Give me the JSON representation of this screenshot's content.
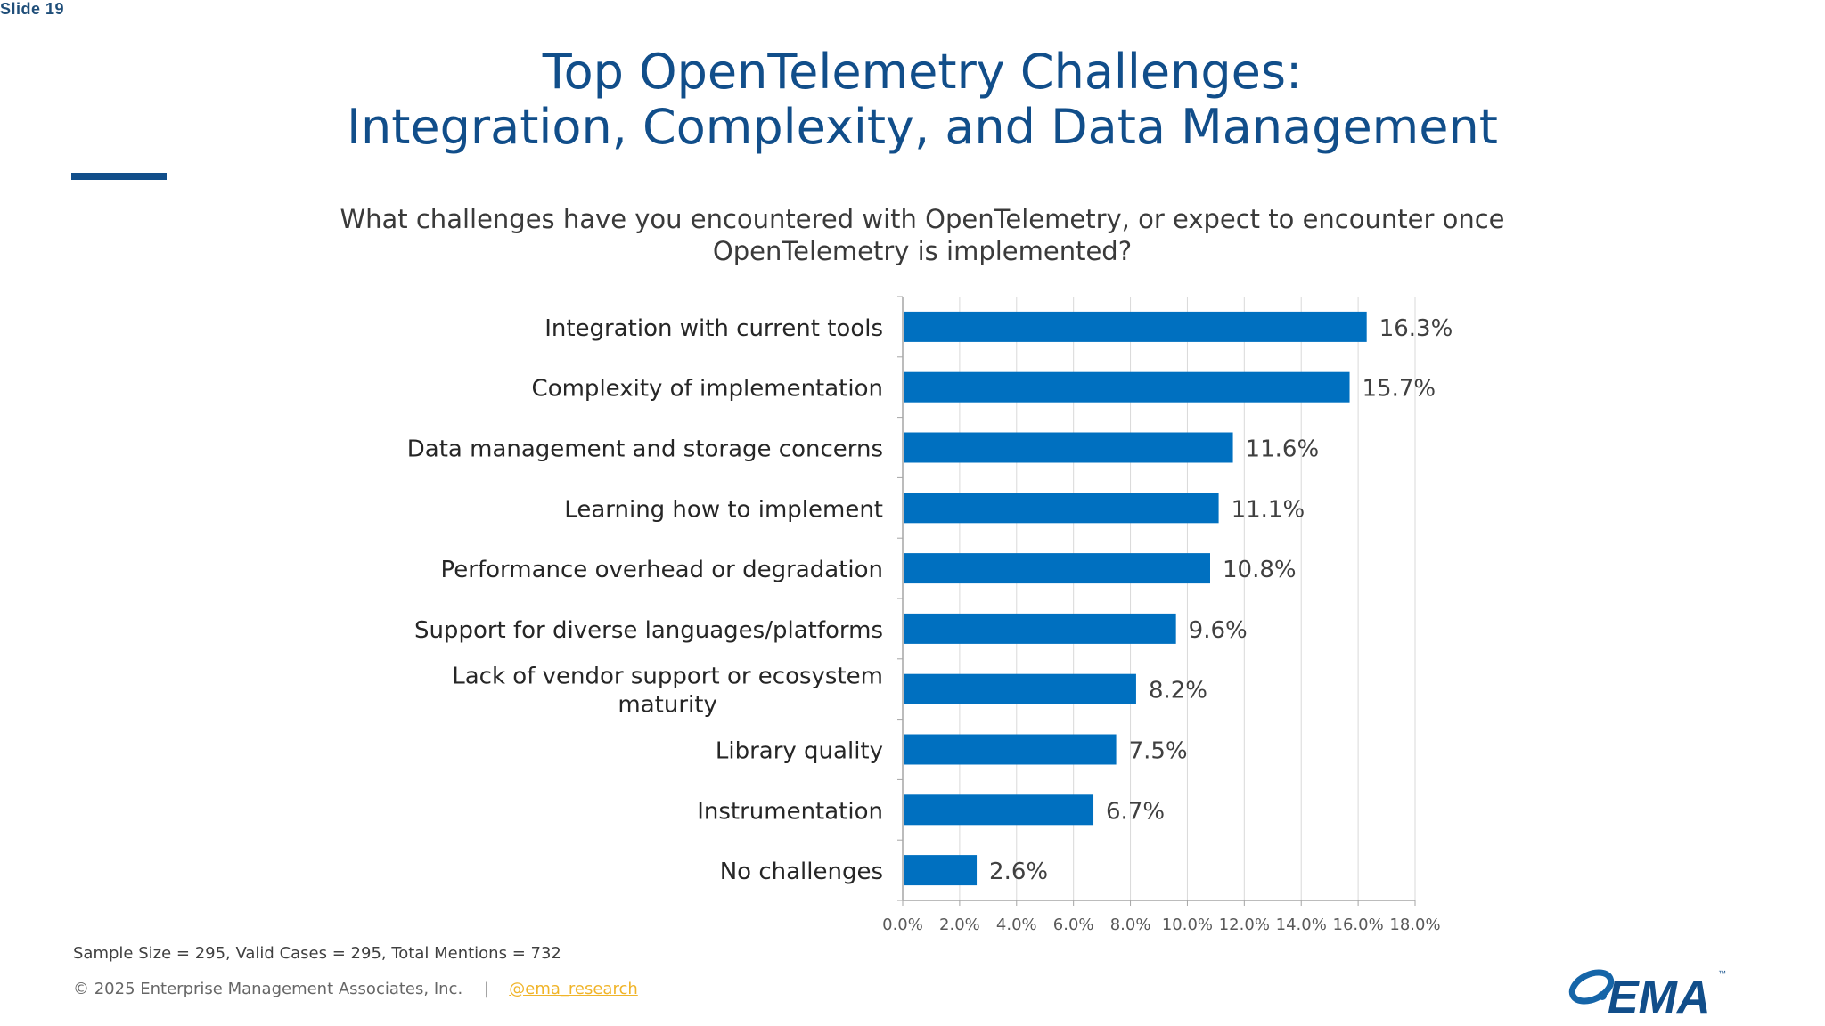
{
  "slide": {
    "label": "Slide 19"
  },
  "title": {
    "line1": "Top OpenTelemetry Challenges:",
    "line2": "Integration, Complexity, and Data Management"
  },
  "question": {
    "line1": "What challenges have you encountered with OpenTelemetry, or expect to encounter once",
    "line2": "OpenTelemetry is implemented?"
  },
  "chart_data": {
    "type": "bar",
    "orientation": "horizontal",
    "categories": [
      "Integration with current tools",
      "Complexity of implementation",
      "Data management and storage concerns",
      "Learning how to implement",
      "Performance overhead or degradation",
      "Support for diverse languages/platforms",
      "Lack of vendor support or ecosystem maturity",
      "Library quality",
      "Instrumentation",
      "No challenges"
    ],
    "category_lines": [
      [
        "Integration with current tools"
      ],
      [
        "Complexity of implementation"
      ],
      [
        "Data management and storage concerns"
      ],
      [
        "Learning how to implement"
      ],
      [
        "Performance overhead or degradation"
      ],
      [
        "Support for diverse languages/platforms"
      ],
      [
        "Lack of vendor support or ecosystem",
        "maturity"
      ],
      [
        "Library quality"
      ],
      [
        "Instrumentation"
      ],
      [
        "No challenges"
      ]
    ],
    "values": [
      16.3,
      15.7,
      11.6,
      11.1,
      10.8,
      9.6,
      8.2,
      7.5,
      6.7,
      2.6
    ],
    "value_labels": [
      "16.3%",
      "15.7%",
      "11.6%",
      "11.1%",
      "10.8%",
      "9.6%",
      "8.2%",
      "7.5%",
      "6.7%",
      "2.6%"
    ],
    "xlim": [
      0,
      18
    ],
    "x_ticks": [
      "0.0%",
      "2.0%",
      "4.0%",
      "6.0%",
      "8.0%",
      "10.0%",
      "12.0%",
      "14.0%",
      "16.0%",
      "18.0%"
    ],
    "grid": true,
    "bar_color": "#0070c0"
  },
  "footnote": {
    "text": "Sample Size = 295, Valid Cases = 295, Total Mentions = 732"
  },
  "footer": {
    "copyright": "© 2025 Enterprise Management Associates, Inc.",
    "separator": "|",
    "link": "@ema_research"
  },
  "logo": {
    "text": "EMA",
    "trademark": "™"
  },
  "colors": {
    "title": "#114e8a",
    "bar": "#0070c0",
    "link": "#f0b429"
  }
}
